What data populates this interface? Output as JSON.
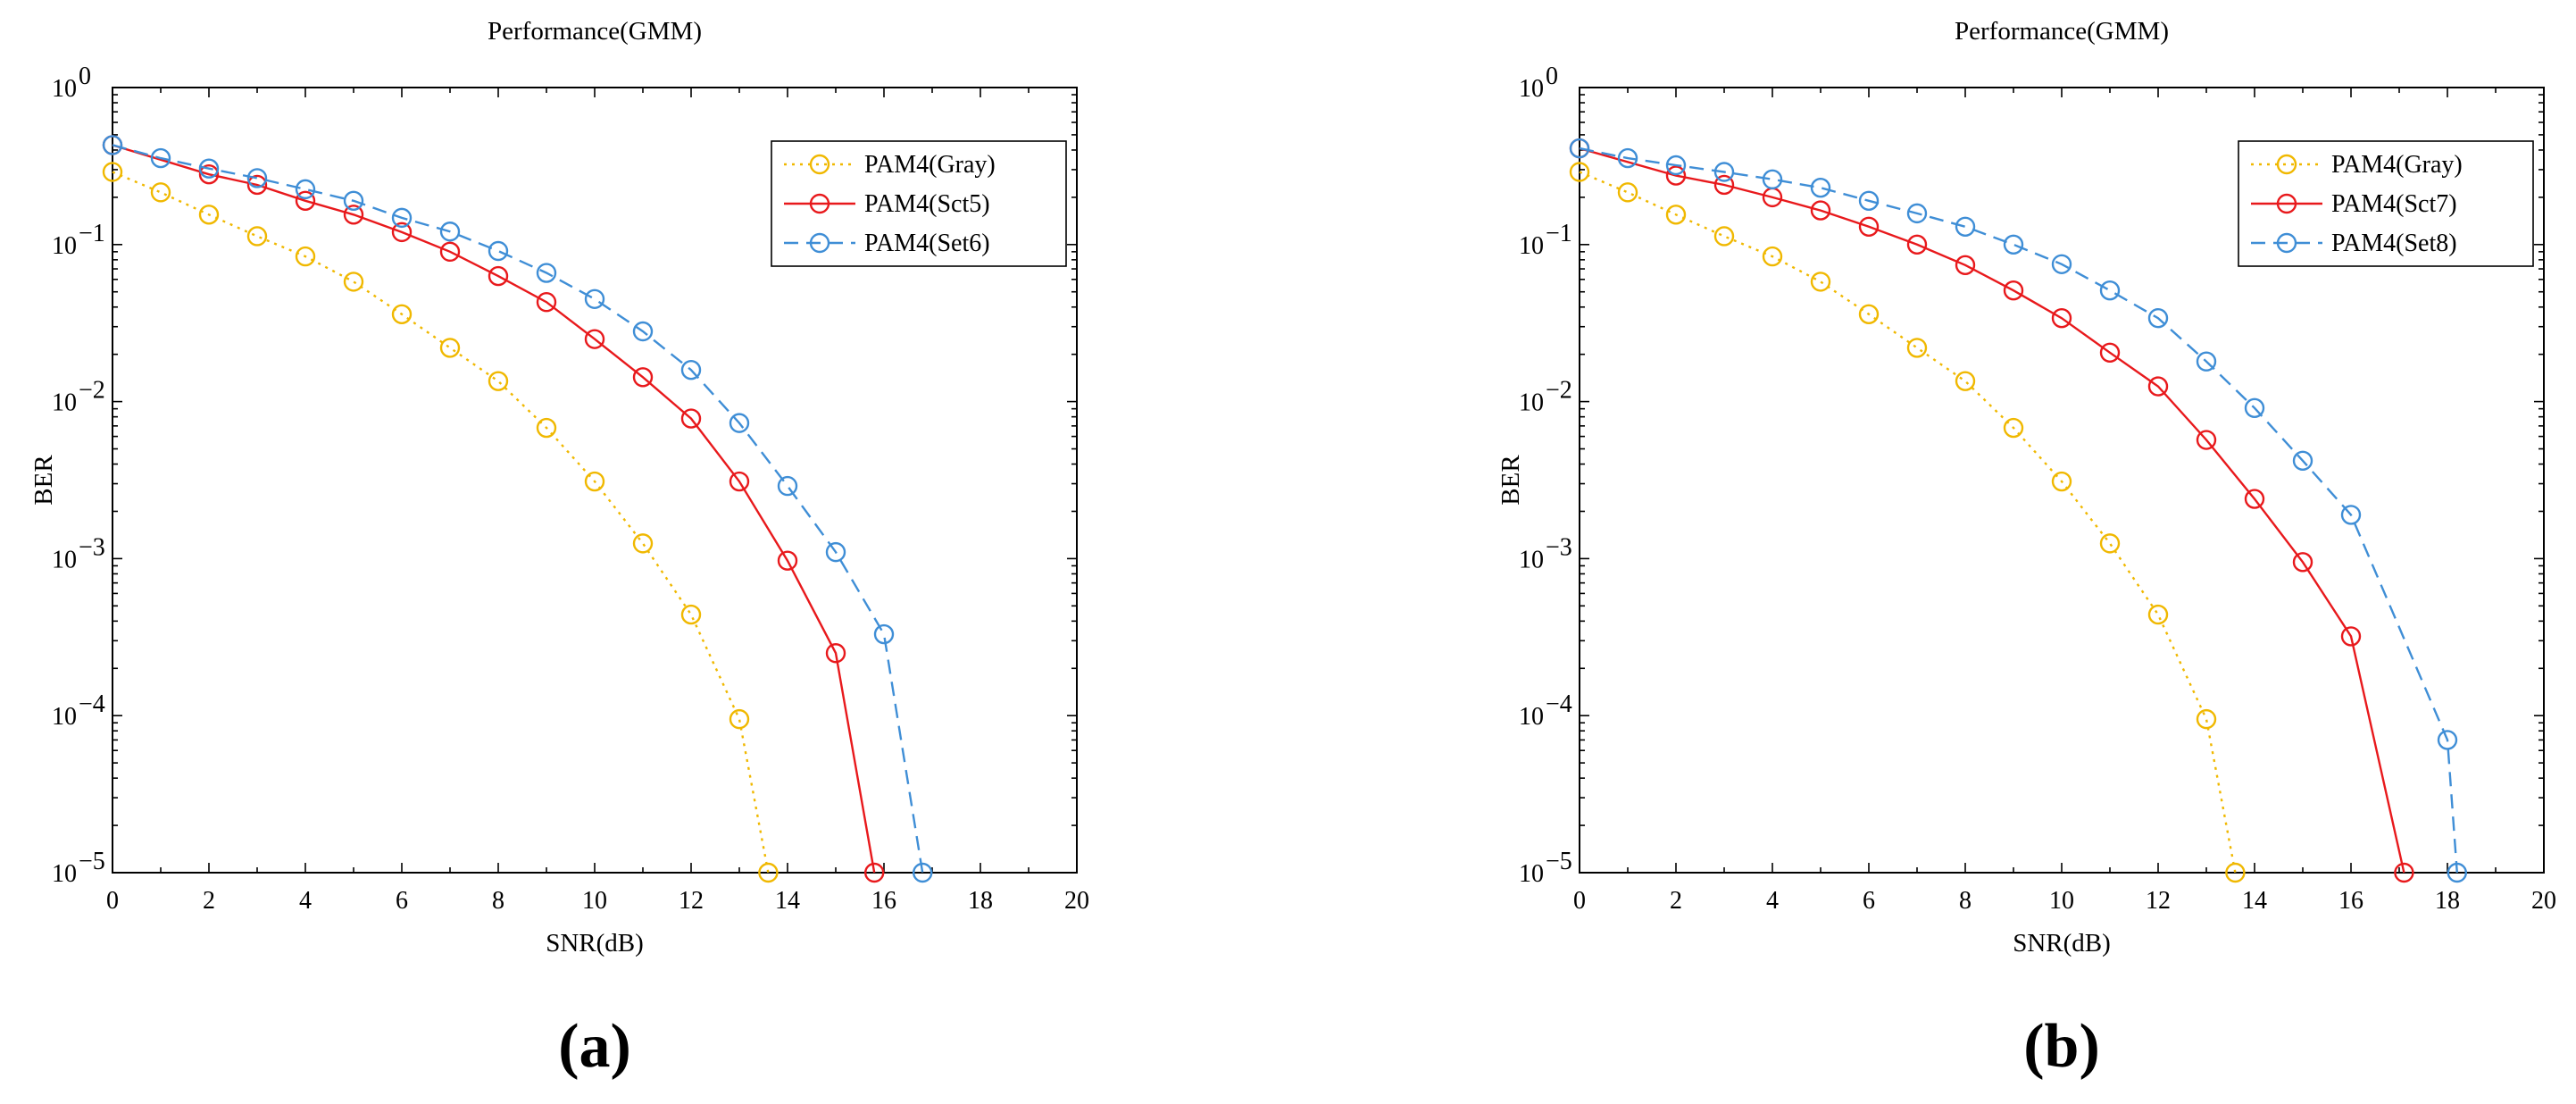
{
  "chart_data": [
    {
      "type": "line",
      "panel_label": "(a)",
      "title": "Performance(GMM)",
      "xlabel": "SNR(dB)",
      "ylabel": "BER",
      "xlim": [
        0,
        20
      ],
      "ylim": [
        1e-05,
        1
      ],
      "yscale": "log",
      "grid": false,
      "legend_position": "top-right",
      "x_ticks": [
        "0",
        "2",
        "4",
        "6",
        "8",
        "10",
        "12",
        "14",
        "16",
        "18",
        "20"
      ],
      "y_ticks": [
        {
          "base": "10",
          "exp": "0"
        },
        {
          "base": "10",
          "exp": "−1"
        },
        {
          "base": "10",
          "exp": "−2"
        },
        {
          "base": "10",
          "exp": "−3"
        },
        {
          "base": "10",
          "exp": "−4"
        },
        {
          "base": "10",
          "exp": "−5"
        }
      ],
      "series": [
        {
          "name": "PAM4(Gray)",
          "color": "#F0B800",
          "line_style": "dotted",
          "marker": "circle",
          "x": [
            0,
            1,
            2,
            3,
            4,
            5,
            6,
            7,
            8,
            9,
            10,
            11,
            12,
            13,
            13.6
          ],
          "y": [
            0.29,
            0.215,
            0.155,
            0.113,
            0.084,
            0.058,
            0.036,
            0.022,
            0.0135,
            0.0068,
            0.0031,
            0.00125,
            0.00044,
            9.5e-05,
            1e-05
          ]
        },
        {
          "name": "PAM4(Sct5)",
          "color": "#E8191C",
          "line_style": "solid",
          "marker": "circle",
          "x": [
            0,
            2,
            3,
            4,
            5,
            6,
            7,
            8,
            9,
            10,
            11,
            12,
            13,
            14,
            15,
            15.8
          ],
          "y": [
            0.43,
            0.28,
            0.24,
            0.19,
            0.155,
            0.12,
            0.09,
            0.063,
            0.043,
            0.025,
            0.0143,
            0.0078,
            0.0031,
            0.00097,
            0.00025,
            1e-05
          ]
        },
        {
          "name": "PAM4(Set6)",
          "color": "#3F8ED6",
          "line_style": "dashed",
          "marker": "circle",
          "x": [
            0,
            1,
            2,
            3,
            4,
            5,
            6,
            7,
            8,
            9,
            10,
            11,
            12,
            13,
            14,
            15,
            16,
            16.8
          ],
          "y": [
            0.43,
            0.355,
            0.305,
            0.265,
            0.225,
            0.19,
            0.148,
            0.121,
            0.091,
            0.066,
            0.045,
            0.028,
            0.0159,
            0.0073,
            0.0029,
            0.0011,
            0.00033,
            1e-05
          ]
        }
      ]
    },
    {
      "type": "line",
      "panel_label": "(b)",
      "title": "Performance(GMM)",
      "xlabel": "SNR(dB)",
      "ylabel": "BER",
      "xlim": [
        0,
        20
      ],
      "ylim": [
        1e-05,
        1
      ],
      "yscale": "log",
      "grid": false,
      "legend_position": "top-right",
      "x_ticks": [
        "0",
        "2",
        "4",
        "6",
        "8",
        "10",
        "12",
        "14",
        "16",
        "18",
        "20"
      ],
      "y_ticks": [
        {
          "base": "10",
          "exp": "0"
        },
        {
          "base": "10",
          "exp": "−1"
        },
        {
          "base": "10",
          "exp": "−2"
        },
        {
          "base": "10",
          "exp": "−3"
        },
        {
          "base": "10",
          "exp": "−4"
        },
        {
          "base": "10",
          "exp": "−5"
        }
      ],
      "series": [
        {
          "name": "PAM4(Gray)",
          "color": "#F0B800",
          "line_style": "dotted",
          "marker": "circle",
          "x": [
            0,
            1,
            2,
            3,
            4,
            5,
            6,
            7,
            8,
            9,
            10,
            11,
            12,
            13,
            13.6
          ],
          "y": [
            0.29,
            0.215,
            0.155,
            0.113,
            0.084,
            0.058,
            0.036,
            0.022,
            0.0135,
            0.0068,
            0.0031,
            0.00125,
            0.00044,
            9.5e-05,
            1e-05
          ]
        },
        {
          "name": "PAM4(Sct7)",
          "color": "#E8191C",
          "line_style": "solid",
          "marker": "circle",
          "x": [
            0,
            2,
            3,
            4,
            5,
            6,
            7,
            8,
            9,
            10,
            11,
            12,
            13,
            14,
            15,
            16,
            17.1
          ],
          "y": [
            0.41,
            0.275,
            0.24,
            0.2,
            0.165,
            0.13,
            0.1,
            0.074,
            0.051,
            0.034,
            0.0205,
            0.0125,
            0.0057,
            0.0024,
            0.00095,
            0.00032,
            1e-05
          ]
        },
        {
          "name": "PAM4(Set8)",
          "color": "#3F8ED6",
          "line_style": "dashed",
          "marker": "circle",
          "x": [
            0,
            1,
            2,
            3,
            4,
            5,
            6,
            7,
            8,
            9,
            10,
            11,
            12,
            13,
            14,
            15,
            16,
            18,
            18.2
          ],
          "y": [
            0.41,
            0.355,
            0.32,
            0.29,
            0.26,
            0.23,
            0.19,
            0.158,
            0.13,
            0.1,
            0.075,
            0.051,
            0.034,
            0.018,
            0.0091,
            0.0042,
            0.0019,
            7e-05,
            1e-05
          ]
        }
      ]
    }
  ]
}
